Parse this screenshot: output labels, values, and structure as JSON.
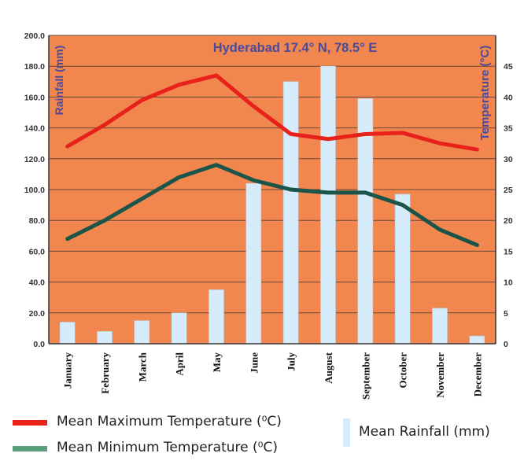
{
  "chart_data": {
    "type": "bar+line",
    "title": "Hyderabad 17.4° N, 78.5° E",
    "y_left_label": "Rainfall (mm)",
    "y_right_label": "Temperature (°C)",
    "y_left_ticks": [
      "0.0",
      "20.0",
      "40.0",
      "60.0",
      "80.0",
      "100.0",
      "120.0",
      "140.0",
      "160.0",
      "180.0",
      "200.0"
    ],
    "y_left_range": [
      0,
      200
    ],
    "y_right_ticks": [
      "0",
      "5",
      "10",
      "15",
      "20",
      "25",
      "30",
      "35",
      "40",
      "45"
    ],
    "y_right_range": [
      0,
      50
    ],
    "grid": true,
    "categories": [
      "January",
      "February",
      "March",
      "April",
      "May",
      "June",
      "July",
      "August",
      "September",
      "October",
      "November",
      "December"
    ],
    "rainfall": {
      "name": "Mean Rainfall (mm)",
      "values": [
        14,
        8,
        15,
        20,
        35,
        104,
        170,
        180,
        159,
        97,
        23,
        5
      ],
      "color": "#d6ecfb"
    },
    "max_temp": {
      "name": "Mean Maximum Temperature (⁰C)",
      "values": [
        32,
        35.5,
        39.5,
        42,
        43.5,
        38.5,
        34,
        33.2,
        34,
        34.2,
        32.5,
        31.5
      ],
      "color": "#e8221b"
    },
    "min_temp": {
      "name": "Mean Minimum Temperature  (⁰C)",
      "values": [
        17,
        20,
        23.5,
        27,
        29,
        26.5,
        25,
        24.5,
        24.5,
        22.5,
        18.5,
        16
      ],
      "color": "#1b5448"
    },
    "background_color": "#f1864e"
  }
}
